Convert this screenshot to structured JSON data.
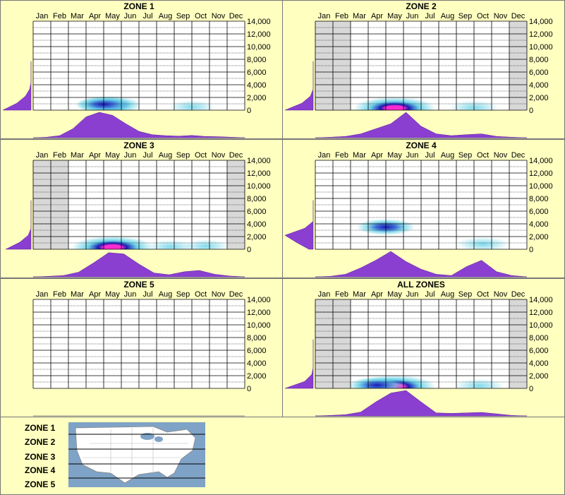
{
  "months": [
    "Jan",
    "Feb",
    "Mar",
    "Apr",
    "May",
    "Jun",
    "Jul",
    "Aug",
    "Sep",
    "Oct",
    "Nov",
    "Dec"
  ],
  "y_ticks": [
    "14,000",
    "12,000",
    "10,000",
    "8,000",
    "6,000",
    "4,000",
    "2,000",
    "0"
  ],
  "colors": {
    "background": "#ffffc0",
    "density": "#8a3fd1",
    "grid": "#000000",
    "inactive_month": "#d8d8d8",
    "heat_core": "#ff2ad0",
    "heat_mid": "#1a1ab4",
    "heat_outer": "#5fd0e6"
  },
  "chart_data": [
    {
      "type": "heatmap",
      "title": "ZONE 1",
      "inactive_months": [],
      "elevation_hotspots": [
        {
          "month": 4.8,
          "elev": 800,
          "intensity": 0.6
        },
        {
          "month": 4.5,
          "elev": 900,
          "intensity": 0.4
        },
        {
          "month": 9.5,
          "elev": 500,
          "intensity": 0.15
        }
      ],
      "month_density": [
        0,
        0.02,
        0.08,
        0.35,
        0.82,
        1.0,
        0.88,
        0.55,
        0.25,
        0.12,
        0.08,
        0.06,
        0.09,
        0.05,
        0.04,
        0.02,
        0
      ],
      "elev_density": [
        1.0,
        0.5,
        0.2,
        0.05,
        0,
        0,
        0,
        0
      ]
    },
    {
      "type": "heatmap",
      "title": "ZONE 2",
      "inactive_months": [
        "Jan",
        "Feb",
        "Dec"
      ],
      "elevation_hotspots": [
        {
          "month": 5.0,
          "elev": 300,
          "intensity": 1.0
        },
        {
          "month": 9.5,
          "elev": 400,
          "intensity": 0.25
        }
      ],
      "month_density": [
        0,
        0.02,
        0.05,
        0.15,
        0.35,
        0.55,
        1.0,
        0.45,
        0.15,
        0.08,
        0.12,
        0.15,
        0.05,
        0.02,
        0
      ],
      "elev_density": [
        1.0,
        0.4,
        0.1,
        0,
        0,
        0,
        0,
        0
      ]
    },
    {
      "type": "heatmap",
      "title": "ZONE 3",
      "inactive_months": [
        "Jan",
        "Feb",
        "Dec"
      ],
      "elevation_hotspots": [
        {
          "month": 5.0,
          "elev": 300,
          "intensity": 1.0
        },
        {
          "month": 8.3,
          "elev": 400,
          "intensity": 0.2
        },
        {
          "month": 10.3,
          "elev": 500,
          "intensity": 0.15
        }
      ],
      "month_density": [
        0,
        0.02,
        0.05,
        0.18,
        0.55,
        0.95,
        0.9,
        0.5,
        0.15,
        0.08,
        0.2,
        0.25,
        0.1,
        0.03,
        0
      ],
      "elev_density": [
        0.9,
        0.4,
        0.1,
        0,
        0,
        0,
        0,
        0
      ]
    },
    {
      "type": "heatmap",
      "title": "ZONE 4",
      "inactive_months": [],
      "elevation_hotspots": [
        {
          "month": 4.5,
          "elev": 3500,
          "intensity": 0.45
        },
        {
          "month": 10.0,
          "elev": 800,
          "intensity": 0.3
        }
      ],
      "month_density": [
        0,
        0.02,
        0.1,
        0.35,
        0.65,
        1.0,
        0.6,
        0.3,
        0.1,
        0.05,
        0.4,
        0.65,
        0.2,
        0.05,
        0
      ],
      "elev_density": [
        0.15,
        0.6,
        1.0,
        0.3,
        0,
        0,
        0,
        0
      ]
    },
    {
      "type": "heatmap",
      "title": "ZONE 5",
      "inactive_months": [],
      "elevation_hotspots": [],
      "month_density": [],
      "elev_density": []
    },
    {
      "type": "heatmap",
      "title": "ALL ZONES",
      "inactive_months": [
        "Jan",
        "Feb",
        "Dec"
      ],
      "elevation_hotspots": [
        {
          "month": 5.0,
          "elev": 300,
          "intensity": 1.0
        },
        {
          "month": 4.0,
          "elev": 500,
          "intensity": 0.45
        },
        {
          "month": 9.8,
          "elev": 400,
          "intensity": 0.25
        }
      ],
      "month_density": [
        0,
        0.02,
        0.05,
        0.15,
        0.55,
        0.9,
        1.0,
        0.55,
        0.12,
        0.1,
        0.12,
        0.14,
        0.08,
        0.02,
        0
      ],
      "elev_density": [
        1.0,
        0.3,
        0.05,
        0,
        0,
        0,
        0,
        0
      ]
    }
  ],
  "legend": {
    "zones": [
      "ZONE 1",
      "ZONE 2",
      "ZONE 3",
      "ZONE 4",
      "ZONE 5"
    ]
  }
}
